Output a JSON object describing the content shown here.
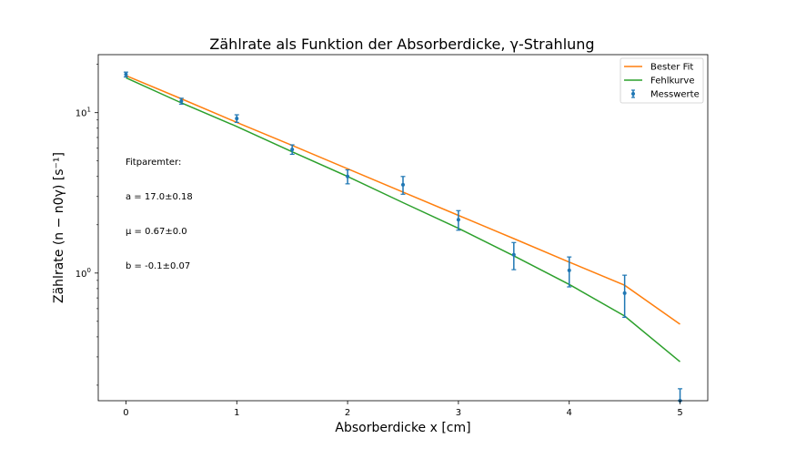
{
  "chart_data": {
    "type": "scatter",
    "title": "Zählrate als Funktion der Absorberdicke, γ-Strahlung",
    "xlabel": "Absorberdicke x [cm]",
    "ylabel": "Zählrate (n − n0γ) [s⁻¹]",
    "xlim": [
      -0.25,
      5.25
    ],
    "ylim": [
      0.16,
      23
    ],
    "yscale": "log",
    "grid": false,
    "legend_position": "top-right",
    "x_ticks": [
      "0",
      "1",
      "2",
      "3",
      "4",
      "5"
    ],
    "y_ticks": [
      {
        "value": 1,
        "base": "10",
        "exp": "0"
      },
      {
        "value": 10,
        "base": "10",
        "exp": "1"
      }
    ],
    "legend": [
      "Bester Fit",
      "Fehlkurve",
      "Messwerte"
    ],
    "annotations": [
      "Fitparemter:",
      "a = 17.0±0.18",
      "μ = 0.67±0.0",
      "b = -0.1±0.07"
    ],
    "series": [
      {
        "name": "Messwerte",
        "type": "errorbar",
        "color": "#1f77b4",
        "x": [
          0,
          0.5,
          1.0,
          1.5,
          2.0,
          2.5,
          3.0,
          3.5,
          4.0,
          4.5,
          5.0
        ],
        "y": [
          17.3,
          11.8,
          9.2,
          5.9,
          4.0,
          3.55,
          2.15,
          1.3,
          1.04,
          0.75,
          0.16
        ],
        "yerr_low": [
          0.6,
          0.5,
          0.5,
          0.4,
          0.4,
          0.45,
          0.3,
          0.25,
          0.22,
          0.22,
          0.05
        ],
        "yerr_high": [
          0.6,
          0.5,
          0.5,
          0.4,
          0.4,
          0.45,
          0.3,
          0.25,
          0.22,
          0.22,
          0.03
        ]
      },
      {
        "name": "Bester Fit",
        "type": "line",
        "color": "#ff7f0e",
        "x": [
          0,
          0.5,
          1.0,
          1.5,
          2.0,
          2.5,
          3.0,
          3.5,
          4.0,
          4.5,
          5.0
        ],
        "y": [
          17.0,
          12.2,
          8.7,
          6.25,
          4.47,
          3.2,
          2.29,
          1.64,
          1.17,
          0.84,
          0.48
        ]
      },
      {
        "name": "Fehlkurve",
        "type": "line",
        "color": "#2ca02c",
        "x": [
          0,
          0.5,
          1.0,
          1.5,
          2.0,
          2.5,
          3.0,
          3.5,
          4.0,
          4.5,
          5.0
        ],
        "y": [
          16.5,
          11.5,
          8.2,
          5.7,
          4.0,
          2.75,
          1.9,
          1.28,
          0.85,
          0.54,
          0.28
        ]
      }
    ]
  }
}
